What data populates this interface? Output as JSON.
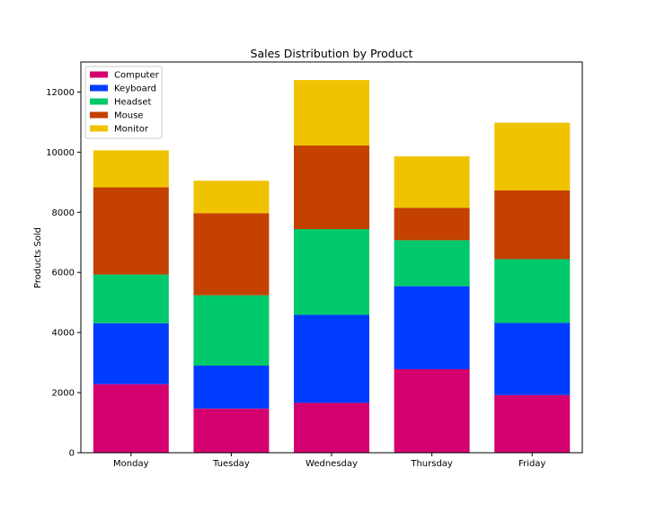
{
  "chart_data": {
    "type": "bar",
    "stacked": true,
    "title": "Sales Distribution by Product",
    "xlabel": "",
    "ylabel": "Products Sold",
    "categories": [
      "Monday",
      "Tuesday",
      "Wednesday",
      "Thursday",
      "Friday"
    ],
    "ylim": [
      0,
      13000
    ],
    "yticks": [
      0,
      2000,
      4000,
      6000,
      8000,
      10000,
      12000
    ],
    "ytick_labels": [
      "0",
      "2000",
      "4000",
      "6000",
      "8000",
      "10000",
      "12000"
    ],
    "grid": false,
    "legend_position": "top-left",
    "series": [
      {
        "name": "Computer",
        "color": "#d5006f",
        "values": [
          2280,
          1470,
          1660,
          2780,
          1920
        ]
      },
      {
        "name": "Keyboard",
        "color": "#003cff",
        "values": [
          2030,
          1430,
          2930,
          2760,
          2400
        ]
      },
      {
        "name": "Headset",
        "color": "#00c96c",
        "values": [
          1620,
          2340,
          2850,
          1530,
          2120
        ]
      },
      {
        "name": "Mouse",
        "color": "#c44100",
        "values": [
          2900,
          2730,
          2780,
          1080,
          2290
        ]
      },
      {
        "name": "Monitor",
        "color": "#f0c300",
        "values": [
          1230,
          1080,
          2180,
          1710,
          2250
        ]
      }
    ]
  }
}
